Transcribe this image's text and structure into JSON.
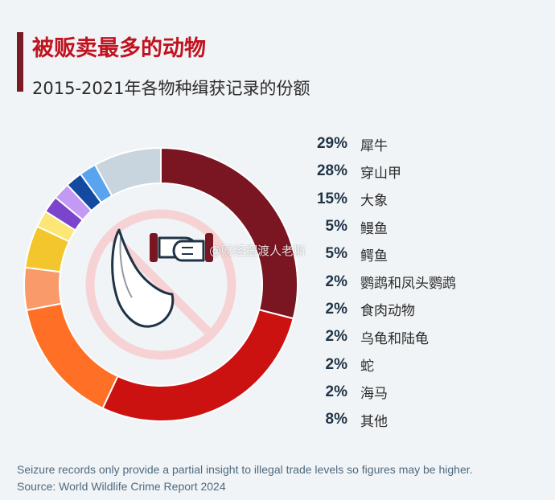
{
  "header": {
    "title": "被贩卖最多的动物",
    "subtitle": "2015-2021年各物种缉获记录的份额"
  },
  "watermark": "@财经摆渡人老斯",
  "footer": {
    "note": "Seizure records only provide a partial insight to illegal trade levels so figures may be higher.",
    "source": "Source: World Wildlife Crime Report 2024"
  },
  "icons": [
    "rhino-horn-icon",
    "handcuffs-icon",
    "prohibited-sign-icon"
  ],
  "chart_data": {
    "type": "pie",
    "style": "donut",
    "title": "被贩卖最多的动物",
    "subtitle": "2015-2021年各物种缉获记录的份额",
    "legend_position": "right",
    "slices": [
      {
        "label": "犀牛",
        "value": 29,
        "display": "29%",
        "color": "#7a1522"
      },
      {
        "label": "穿山甲",
        "value": 28,
        "display": "28%",
        "color": "#cc1111"
      },
      {
        "label": "大象",
        "value": 15,
        "display": "15%",
        "color": "#ff6f26"
      },
      {
        "label": "鳗鱼",
        "value": 5,
        "display": "5%",
        "color": "#f99a6b"
      },
      {
        "label": "鳄鱼",
        "value": 5,
        "display": "5%",
        "color": "#f3c62e"
      },
      {
        "label": "鹦鹉和凤头鹦鹉",
        "value": 2,
        "display": "2%",
        "color": "#fbe676"
      },
      {
        "label": "食肉动物",
        "value": 2,
        "display": "2%",
        "color": "#7a44cc"
      },
      {
        "label": "乌龟和陆龟",
        "value": 2,
        "display": "2%",
        "color": "#c39af3"
      },
      {
        "label": "蛇",
        "value": 2,
        "display": "2%",
        "color": "#1449a2"
      },
      {
        "label": "海马",
        "value": 2,
        "display": "2%",
        "color": "#5aa3ef"
      },
      {
        "label": "其他",
        "value": 8,
        "display": "8%",
        "color": "#c9d5de"
      }
    ]
  }
}
